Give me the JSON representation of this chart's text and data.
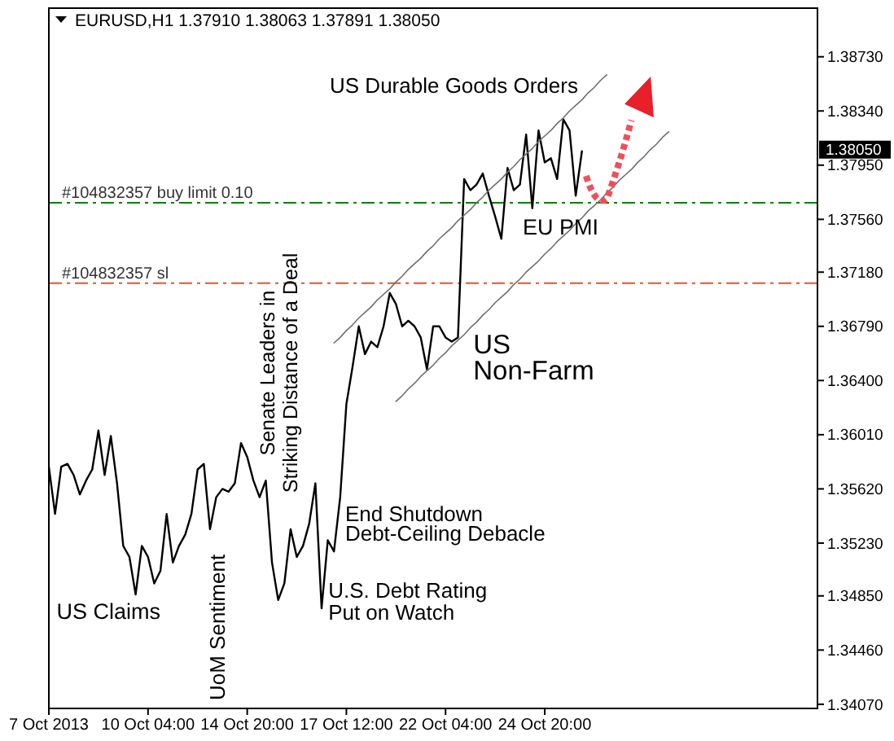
{
  "chart_data": {
    "type": "line",
    "title": "EURUSD,H1 1.37910 1.38063 1.37891 1.38050",
    "categories": [
      "7 Oct 2013",
      null,
      null,
      null,
      null,
      null,
      null,
      null,
      null,
      null,
      null,
      null,
      null,
      null,
      null,
      null,
      "10 Oct 04:00",
      null,
      null,
      null,
      null,
      null,
      null,
      null,
      null,
      null,
      null,
      null,
      null,
      null,
      null,
      null,
      "14 Oct 20:00",
      null,
      null,
      null,
      null,
      null,
      null,
      null,
      null,
      null,
      null,
      null,
      null,
      null,
      null,
      null,
      "17 Oct 12:00",
      null,
      null,
      null,
      null,
      null,
      null,
      null,
      null,
      null,
      null,
      null,
      null,
      null,
      null,
      null,
      "22 Oct 04:00",
      null,
      null,
      null,
      null,
      null,
      null,
      null,
      null,
      null,
      null,
      null,
      null,
      null,
      null,
      null,
      "24 Oct 20:00",
      null,
      null,
      null,
      null,
      null,
      null,
      null,
      null,
      null,
      null,
      null,
      null,
      null,
      null,
      null,
      null,
      null,
      null,
      null,
      null,
      null,
      null,
      null,
      null,
      null,
      null,
      null,
      null,
      null,
      null,
      null,
      null,
      null,
      null,
      null,
      null,
      null,
      null,
      null,
      null,
      null,
      null,
      null,
      null
    ],
    "ylim": [
      1.3404,
      1.3908
    ],
    "yticks": [
      {
        "value": 1.3407,
        "label": "1.34070"
      },
      {
        "value": 1.3446,
        "label": "1.34460"
      },
      {
        "value": 1.3485,
        "label": "1.34850"
      },
      {
        "value": 1.3523,
        "label": "1.35230"
      },
      {
        "value": 1.3562,
        "label": "1.35620"
      },
      {
        "value": 1.3601,
        "label": "1.36010"
      },
      {
        "value": 1.364,
        "label": "1.36400"
      },
      {
        "value": 1.3679,
        "label": "1.36790"
      },
      {
        "value": 1.3718,
        "label": "1.37180"
      },
      {
        "value": 1.3756,
        "label": "1.37560"
      },
      {
        "value": 1.3795,
        "label": "1.37950"
      },
      {
        "value": 1.3834,
        "label": "1.38340"
      },
      {
        "value": 1.3873,
        "label": "1.38730"
      }
    ],
    "series": [
      {
        "color": "#000000",
        "values": [
          1.3578,
          1.3544,
          1.3578,
          1.358,
          1.3572,
          1.3558,
          1.3568,
          1.3576,
          1.3604,
          1.3572,
          1.36,
          1.3566,
          1.3521,
          1.3513,
          1.3486,
          1.3521,
          1.3513,
          1.3494,
          1.3503,
          1.3544,
          1.3509,
          1.3521,
          1.3529,
          1.3544,
          1.3576,
          1.358,
          1.3533,
          1.3556,
          1.3562,
          1.356,
          1.3566,
          1.3595,
          1.3585,
          1.3568,
          1.3556,
          1.3568,
          1.3509,
          1.3482,
          1.3494,
          1.3533,
          1.3513,
          1.3521,
          1.3537,
          1.3566,
          1.3476,
          1.3525,
          1.3517,
          1.3556,
          1.3623,
          1.365,
          1.3679,
          1.3659,
          1.3668,
          1.3664,
          1.3679,
          1.3703,
          1.3695,
          1.3679,
          1.3683,
          1.3679,
          1.3671,
          1.3648,
          1.3679,
          1.3679,
          1.3671,
          1.3668,
          1.3671,
          1.3785,
          1.3777,
          1.3781,
          1.3789,
          1.3773,
          1.3758,
          1.3742,
          1.3793,
          1.3777,
          1.3781,
          1.3817,
          1.3764,
          1.382,
          1.3797,
          1.38,
          1.3785,
          1.3828,
          1.382,
          1.3773,
          1.3805,
          null,
          null,
          null,
          null,
          null,
          null,
          null,
          null,
          null,
          null,
          null,
          null,
          null,
          null,
          null,
          null,
          null,
          null,
          null,
          null,
          null,
          null,
          null,
          null,
          null,
          null,
          null,
          null,
          null,
          null,
          null,
          null,
          null,
          null,
          null,
          null,
          null,
          null
        ]
      },
      {
        "color": "#707070",
        "values": [
          null,
          null,
          null,
          null,
          null,
          null,
          null,
          null,
          null,
          null,
          null,
          null,
          null,
          null,
          null,
          null,
          null,
          null,
          null,
          null,
          null,
          null,
          null,
          null,
          null,
          null,
          null,
          null,
          null,
          null,
          null,
          null,
          null,
          null,
          null,
          null,
          null,
          null,
          null,
          null,
          null,
          null,
          null,
          null,
          null,
          null,
          1.3667,
          1.3671,
          1.3676,
          1.368,
          1.3685,
          1.3689,
          1.3693,
          1.3698,
          1.3702,
          1.3706,
          1.3711,
          1.3715,
          1.372,
          1.3724,
          1.3728,
          1.3733,
          1.3737,
          1.3742,
          1.3746,
          1.375,
          1.3755,
          1.3759,
          1.3763,
          1.3768,
          1.3772,
          1.3777,
          1.3781,
          1.3785,
          1.379,
          1.3794,
          1.3799,
          1.3803,
          1.3807,
          1.3812,
          1.3816,
          1.382,
          1.3825,
          1.3829,
          1.3834,
          1.3838,
          1.3842,
          1.3847,
          1.3851,
          1.3856,
          1.386,
          null,
          null,
          null,
          null,
          null,
          null,
          null,
          null,
          null,
          null,
          null,
          null,
          null,
          null,
          null,
          null,
          null,
          null,
          null,
          null,
          null,
          null,
          null,
          null,
          null,
          null,
          null,
          null,
          null,
          null,
          null,
          null,
          null,
          null
        ]
      },
      {
        "color": "#707070",
        "values": [
          null,
          null,
          null,
          null,
          null,
          null,
          null,
          null,
          null,
          null,
          null,
          null,
          null,
          null,
          null,
          null,
          null,
          null,
          null,
          null,
          null,
          null,
          null,
          null,
          null,
          null,
          null,
          null,
          null,
          null,
          null,
          null,
          null,
          null,
          null,
          null,
          null,
          null,
          null,
          null,
          null,
          null,
          null,
          null,
          null,
          null,
          null,
          null,
          null,
          null,
          null,
          null,
          null,
          null,
          null,
          null,
          1.3625,
          1.3629,
          1.3634,
          1.3638,
          1.3643,
          1.3647,
          1.3651,
          1.3656,
          1.366,
          1.3665,
          1.3669,
          1.3673,
          1.3678,
          1.3682,
          1.3687,
          1.3691,
          1.3696,
          1.37,
          1.3704,
          1.3709,
          1.3713,
          1.3718,
          1.3722,
          1.3726,
          1.3731,
          1.3735,
          1.374,
          1.3744,
          1.3748,
          1.3753,
          1.3757,
          1.3762,
          1.3766,
          1.377,
          1.3775,
          1.3779,
          1.3784,
          1.3788,
          1.3792,
          1.3797,
          1.3801,
          1.3806,
          1.381,
          1.3815,
          1.3819,
          null,
          null,
          null,
          null,
          null,
          null,
          null,
          null,
          null,
          null,
          null,
          null,
          null,
          null,
          null,
          null,
          null,
          null,
          null,
          null,
          null,
          null,
          null,
          null
        ]
      }
    ],
    "ref_lines": [
      {
        "axis": "y",
        "value": 1.3768,
        "label": "#104832357 buy limit 0.10",
        "color": "#008000",
        "line_style": "dashed"
      },
      {
        "axis": "y",
        "value": 1.371,
        "label": "#104832357 sl",
        "color": "#e9522a",
        "line_style": "dashed"
      }
    ],
    "annotations": [
      "US Durable Goods Orders",
      "EU PMI",
      "US\nNon-Farm",
      "Senate Leaders in\nStriking Distance of a Deal",
      "UoM Sentiment",
      "US Claims",
      "End Shutdown\nDebt-Ceiling Debacle",
      "U.S. Debt Rating\nPut on Watch",
      "1.38050"
    ]
  }
}
